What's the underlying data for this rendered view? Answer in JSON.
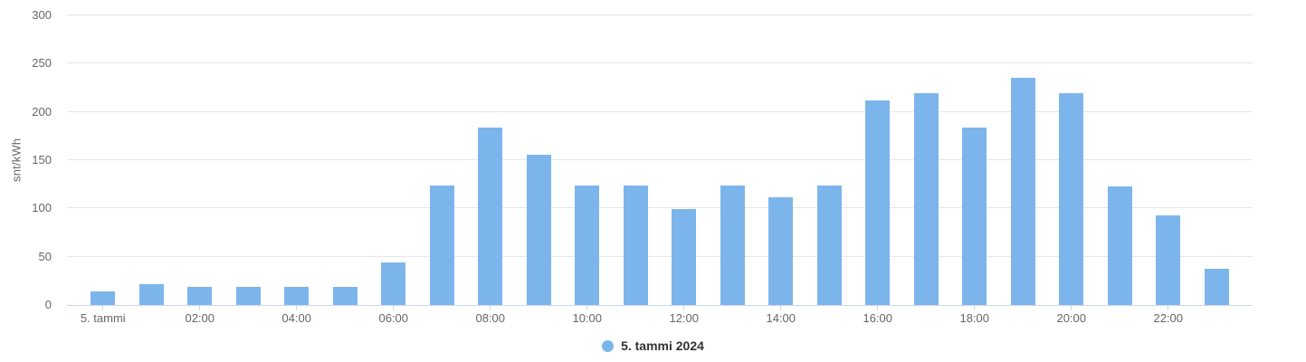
{
  "chart_data": {
    "type": "bar",
    "title": "",
    "xlabel": "",
    "ylabel": "snt/kWh",
    "ylim": [
      0,
      300
    ],
    "y_ticks": [
      0,
      50,
      100,
      150,
      200,
      250,
      300
    ],
    "grid": "horizontal-only",
    "legend_position": "bottom-center",
    "categories": [
      "00:00",
      "01:00",
      "02:00",
      "03:00",
      "04:00",
      "05:00",
      "06:00",
      "07:00",
      "08:00",
      "09:00",
      "10:00",
      "11:00",
      "12:00",
      "13:00",
      "14:00",
      "15:00",
      "16:00",
      "17:00",
      "18:00",
      "19:00",
      "20:00",
      "21:00",
      "22:00",
      "23:00"
    ],
    "series": [
      {
        "name": "5. tammi 2024",
        "color": "#7cb5ec",
        "values": [
          14,
          21.5,
          18.5,
          18.5,
          18.5,
          18.5,
          44.5,
          124,
          184,
          156,
          124,
          124,
          99,
          124,
          112,
          124,
          212,
          219,
          184,
          235,
          219,
          123,
          93,
          37.5
        ]
      }
    ],
    "x_ticks": [
      {
        "index": 0,
        "label": "5. tammi"
      },
      {
        "index": 2,
        "label": "02:00"
      },
      {
        "index": 4,
        "label": "04:00"
      },
      {
        "index": 6,
        "label": "06:00"
      },
      {
        "index": 8,
        "label": "08:00"
      },
      {
        "index": 10,
        "label": "10:00"
      },
      {
        "index": 12,
        "label": "12:00"
      },
      {
        "index": 14,
        "label": "14:00"
      },
      {
        "index": 16,
        "label": "16:00"
      },
      {
        "index": 18,
        "label": "18:00"
      },
      {
        "index": 20,
        "label": "20:00"
      },
      {
        "index": 22,
        "label": "22:00"
      }
    ],
    "colors": {
      "bar": "#7cb5ec",
      "axis_line": "#ccd6eb",
      "gridline": "#e6e6e6",
      "axis_label_text": "#666666",
      "legend_text": "#333333",
      "background": "#ffffff"
    }
  }
}
